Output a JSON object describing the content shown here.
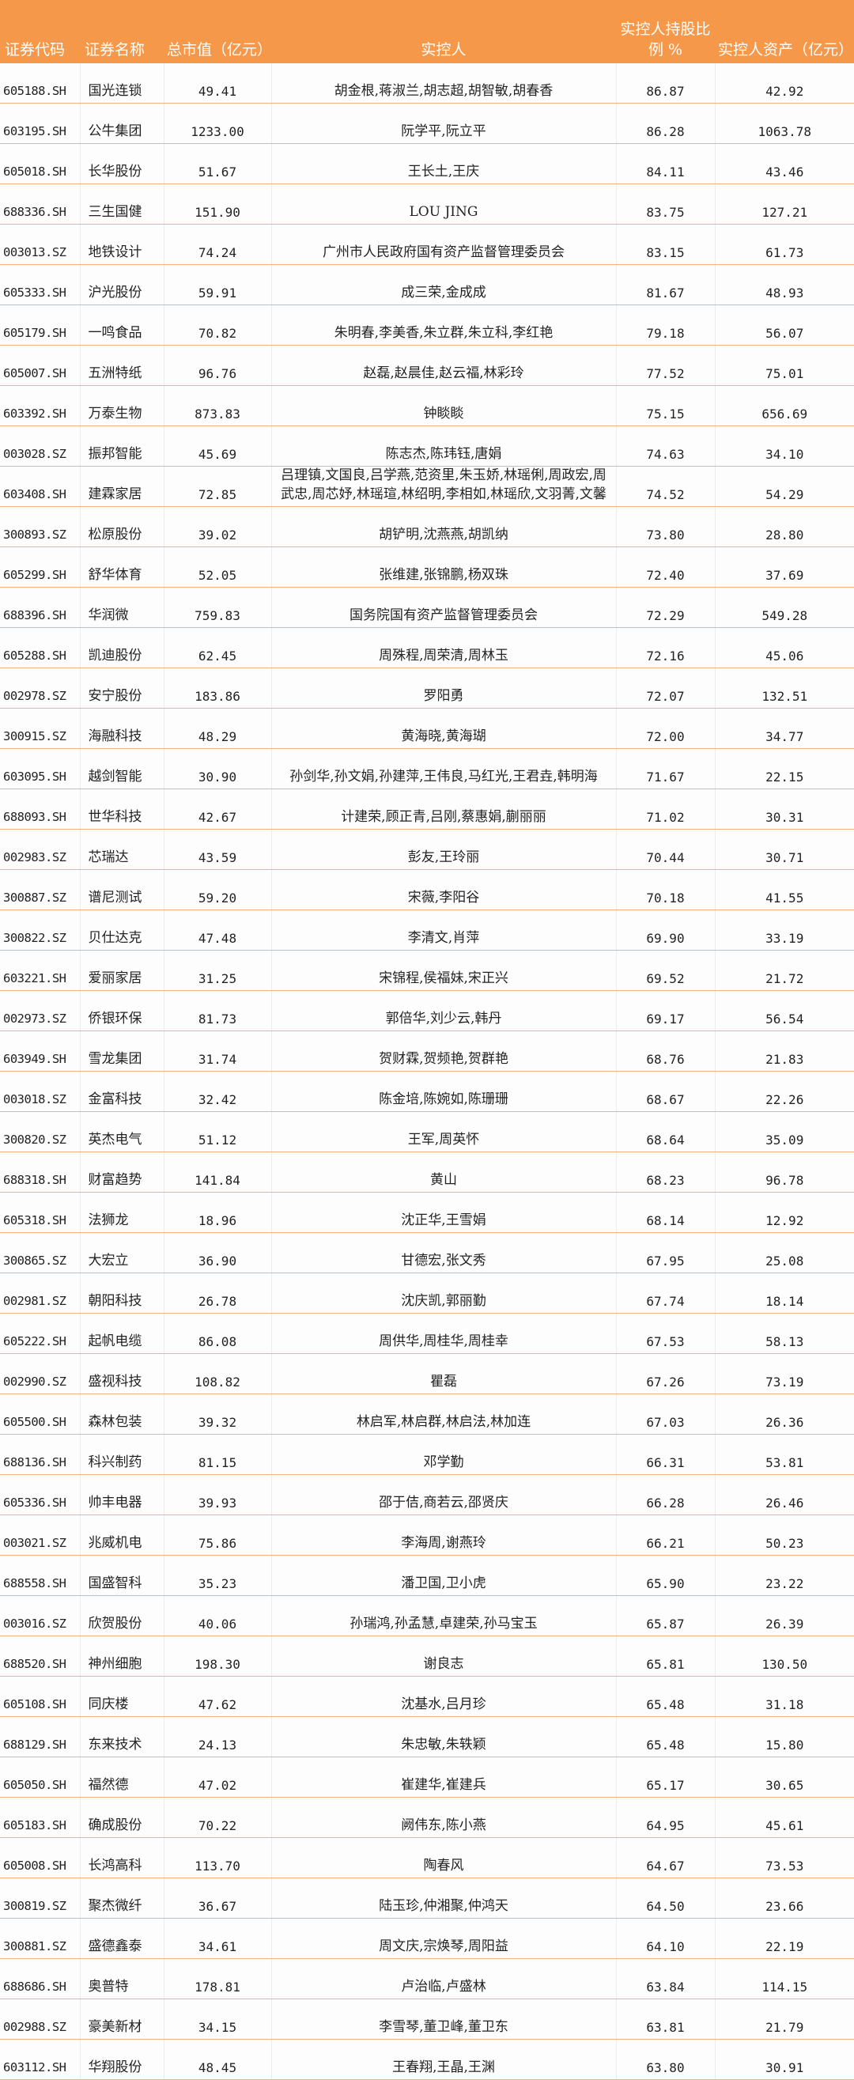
{
  "table": {
    "headers": [
      "证券代码",
      "证券名称",
      "总市值（亿元）",
      "实控人",
      "实控人持股比例 %",
      "实控人资产（亿元）"
    ],
    "rows": [
      [
        "605188.SH",
        "国光连锁",
        "49.41",
        "胡金根,蒋淑兰,胡志超,胡智敏,胡春香",
        "86.87",
        "42.92"
      ],
      [
        "603195.SH",
        "公牛集团",
        "1233.00",
        "阮学平,阮立平",
        "86.28",
        "1063.78"
      ],
      [
        "605018.SH",
        "长华股份",
        "51.67",
        "王长土,王庆",
        "84.11",
        "43.46"
      ],
      [
        "688336.SH",
        "三生国健",
        "151.90",
        "LOU JING",
        "83.75",
        "127.21"
      ],
      [
        "003013.SZ",
        "地铁设计",
        "74.24",
        "广州市人民政府国有资产监督管理委员会",
        "83.15",
        "61.73"
      ],
      [
        "605333.SH",
        "沪光股份",
        "59.91",
        "成三荣,金成成",
        "81.67",
        "48.93"
      ],
      [
        "605179.SH",
        "一鸣食品",
        "70.82",
        "朱明春,李美香,朱立群,朱立科,李红艳",
        "79.18",
        "56.07"
      ],
      [
        "605007.SH",
        "五洲特纸",
        "96.76",
        "赵磊,赵晨佳,赵云福,林彩玲",
        "77.52",
        "75.01"
      ],
      [
        "603392.SH",
        "万泰生物",
        "873.83",
        "钟睒睒",
        "75.15",
        "656.69"
      ],
      [
        "003028.SZ",
        "振邦智能",
        "45.69",
        "陈志杰,陈玮钰,唐娟",
        "74.63",
        "34.10"
      ],
      [
        "603408.SH",
        "建霖家居",
        "72.85",
        "吕理镇,文国良,吕学燕,范资里,朱玉娇,林瑶俐,周政宏,周武忠,周芯妤,林瑶瑄,林绍明,李相如,林瑶欣,文羽菁,文馨",
        "74.52",
        "54.29"
      ],
      [
        "300893.SZ",
        "松原股份",
        "39.02",
        "胡铲明,沈燕燕,胡凯纳",
        "73.80",
        "28.80"
      ],
      [
        "605299.SH",
        "舒华体育",
        "52.05",
        "张维建,张锦鹏,杨双珠",
        "72.40",
        "37.69"
      ],
      [
        "688396.SH",
        "华润微",
        "759.83",
        "国务院国有资产监督管理委员会",
        "72.29",
        "549.28"
      ],
      [
        "605288.SH",
        "凯迪股份",
        "62.45",
        "周殊程,周荣清,周林玉",
        "72.16",
        "45.06"
      ],
      [
        "002978.SZ",
        "安宁股份",
        "183.86",
        "罗阳勇",
        "72.07",
        "132.51"
      ],
      [
        "300915.SZ",
        "海融科技",
        "48.29",
        "黄海晓,黄海瑚",
        "72.00",
        "34.77"
      ],
      [
        "603095.SH",
        "越剑智能",
        "30.90",
        "孙剑华,孙文娟,孙建萍,王伟良,马红光,王君垚,韩明海",
        "71.67",
        "22.15"
      ],
      [
        "688093.SH",
        "世华科技",
        "42.67",
        "计建荣,顾正青,吕刚,蔡惠娟,蒯丽丽",
        "71.02",
        "30.31"
      ],
      [
        "002983.SZ",
        "芯瑞达",
        "43.59",
        "彭友,王玲丽",
        "70.44",
        "30.71"
      ],
      [
        "300887.SZ",
        "谱尼测试",
        "59.20",
        "宋薇,李阳谷",
        "70.18",
        "41.55"
      ],
      [
        "300822.SZ",
        "贝仕达克",
        "47.48",
        "李清文,肖萍",
        "69.90",
        "33.19"
      ],
      [
        "603221.SH",
        "爱丽家居",
        "31.25",
        "宋锦程,侯福妹,宋正兴",
        "69.52",
        "21.72"
      ],
      [
        "002973.SZ",
        "侨银环保",
        "81.73",
        "郭倍华,刘少云,韩丹",
        "69.17",
        "56.54"
      ],
      [
        "603949.SH",
        "雪龙集团",
        "31.74",
        "贺财霖,贺频艳,贺群艳",
        "68.76",
        "21.83"
      ],
      [
        "003018.SZ",
        "金富科技",
        "32.42",
        "陈金培,陈婉如,陈珊珊",
        "68.67",
        "22.26"
      ],
      [
        "300820.SZ",
        "英杰电气",
        "51.12",
        "王军,周英怀",
        "68.64",
        "35.09"
      ],
      [
        "688318.SH",
        "财富趋势",
        "141.84",
        "黄山",
        "68.23",
        "96.78"
      ],
      [
        "605318.SH",
        "法狮龙",
        "18.96",
        "沈正华,王雪娟",
        "68.14",
        "12.92"
      ],
      [
        "300865.SZ",
        "大宏立",
        "36.90",
        "甘德宏,张文秀",
        "67.95",
        "25.08"
      ],
      [
        "002981.SZ",
        "朝阳科技",
        "26.78",
        "沈庆凯,郭丽勤",
        "67.74",
        "18.14"
      ],
      [
        "605222.SH",
        "起帆电缆",
        "86.08",
        "周供华,周桂华,周桂幸",
        "67.53",
        "58.13"
      ],
      [
        "002990.SZ",
        "盛视科技",
        "108.82",
        "瞿磊",
        "67.26",
        "73.19"
      ],
      [
        "605500.SH",
        "森林包装",
        "39.32",
        "林启军,林启群,林启法,林加连",
        "67.03",
        "26.36"
      ],
      [
        "688136.SH",
        "科兴制药",
        "81.15",
        "邓学勤",
        "66.31",
        "53.81"
      ],
      [
        "605336.SH",
        "帅丰电器",
        "39.93",
        "邵于佶,商若云,邵贤庆",
        "66.28",
        "26.46"
      ],
      [
        "003021.SZ",
        "兆威机电",
        "75.86",
        "李海周,谢燕玲",
        "66.21",
        "50.23"
      ],
      [
        "688558.SH",
        "国盛智科",
        "35.23",
        "潘卫国,卫小虎",
        "65.90",
        "23.22"
      ],
      [
        "003016.SZ",
        "欣贺股份",
        "40.06",
        "孙瑞鸿,孙孟慧,卓建荣,孙马宝玉",
        "65.87",
        "26.39"
      ],
      [
        "688520.SH",
        "神州细胞",
        "198.30",
        "谢良志",
        "65.81",
        "130.50"
      ],
      [
        "605108.SH",
        "同庆楼",
        "47.62",
        "沈基水,吕月珍",
        "65.48",
        "31.18"
      ],
      [
        "688129.SH",
        "东来技术",
        "24.13",
        "朱忠敏,朱轶颖",
        "65.48",
        "15.80"
      ],
      [
        "605050.SH",
        "福然德",
        "47.02",
        "崔建华,崔建兵",
        "65.17",
        "30.65"
      ],
      [
        "605183.SH",
        "确成股份",
        "70.22",
        "阙伟东,陈小燕",
        "64.95",
        "45.61"
      ],
      [
        "605008.SH",
        "长鸿高科",
        "113.70",
        "陶春风",
        "64.67",
        "73.53"
      ],
      [
        "300819.SZ",
        "聚杰微纤",
        "36.67",
        "陆玉珍,仲湘聚,仲鸿天",
        "64.50",
        "23.66"
      ],
      [
        "300881.SZ",
        "盛德鑫泰",
        "34.61",
        "周文庆,宗焕琴,周阳益",
        "64.10",
        "22.19"
      ],
      [
        "688686.SH",
        "奥普特",
        "178.81",
        "卢治临,卢盛林",
        "63.84",
        "114.15"
      ],
      [
        "002988.SZ",
        "豪美新材",
        "34.15",
        "李雪琴,董卫峰,董卫东",
        "63.81",
        "21.79"
      ],
      [
        "603112.SH",
        "华翔股份",
        "48.45",
        "王春翔,王晶,王渊",
        "63.80",
        "30.91"
      ]
    ]
  },
  "colors": {
    "header_bg": "#f5984a",
    "header_text": "#ffffff",
    "row_rule": "#f4b183"
  }
}
